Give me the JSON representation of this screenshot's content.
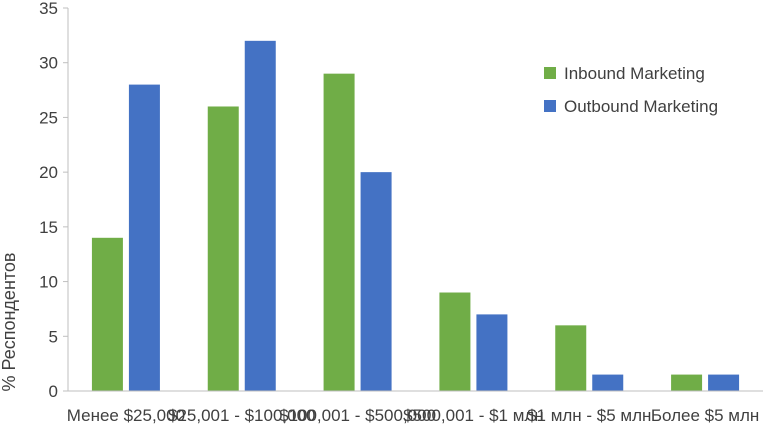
{
  "chart_data": {
    "type": "bar",
    "title": "",
    "xlabel": "",
    "ylabel": "% Респондентов",
    "ylim": [
      0,
      35
    ],
    "yticks": [
      0,
      5,
      10,
      15,
      20,
      25,
      30,
      35
    ],
    "grid": false,
    "legend_position": "right",
    "categories": [
      "Менее $25,000",
      "$25,001 - $100,000",
      "$100,001 - $500,000",
      "$500,001 - $1 млн",
      "$1 млн - $5 млн",
      "Более $5 млн"
    ],
    "series": [
      {
        "name": "Inbound Marketing",
        "color": "#70AD47",
        "values": [
          14,
          26,
          29,
          9,
          6,
          1.5
        ]
      },
      {
        "name": "Outbound Marketing",
        "color": "#4472C4",
        "values": [
          28,
          32,
          20,
          7,
          1.5,
          1.5
        ]
      }
    ]
  }
}
